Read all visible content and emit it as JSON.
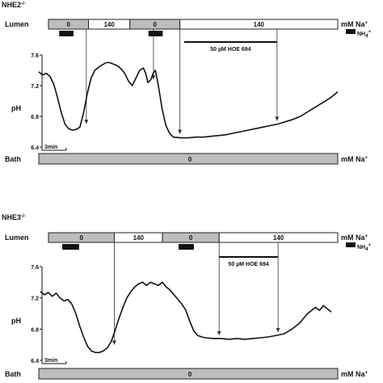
{
  "chart_data": [
    {
      "type": "line",
      "title": "NHE2",
      "title_sup": "-/-",
      "ylabel": "pH",
      "ylim": [
        6.4,
        7.6
      ],
      "yticks": [
        "7.6",
        "7.2",
        "6.8",
        "6.4"
      ],
      "scale_bar": "3min",
      "lumen": {
        "label": "Lumen",
        "unit": "mM Na",
        "unit_sup": "+",
        "segments": [
          {
            "value": "0",
            "shaded": true,
            "start": 0,
            "end": 5.6
          },
          {
            "value": "140",
            "shaded": false,
            "start": 5.6,
            "end": 11.4
          },
          {
            "value": "0",
            "shaded": true,
            "start": 11.4,
            "end": 18.4
          },
          {
            "value": "140",
            "shaded": false,
            "start": 18.4,
            "end": 40.5
          }
        ]
      },
      "nh4": {
        "label": "NH",
        "sub": "4",
        "sup": "+",
        "pulses": [
          [
            1.5,
            3.5
          ],
          [
            14.0,
            16.0
          ]
        ]
      },
      "drug": {
        "label": "50 µM HOE 694",
        "start": 19.0,
        "end": 32.0
      },
      "arrows": [
        5.3,
        14.7,
        18.4,
        32.0
      ],
      "bath": {
        "label": "Bath",
        "unit": "mM Na",
        "unit_sup": "+",
        "value": "0"
      },
      "series": [
        {
          "x": [
            0,
            0.5,
            1,
            1.5,
            2,
            2.5,
            3,
            3.5,
            4,
            4.5,
            5,
            5.5,
            6,
            6.5,
            7,
            7.5,
            8,
            8.5,
            9,
            9.5,
            10,
            10.5,
            11,
            11.5,
            12,
            12.5,
            13,
            13.5,
            14,
            14.3,
            14.6,
            15,
            15.3,
            15.6,
            16,
            16.5,
            17,
            17.5,
            18,
            19,
            20,
            21,
            22,
            23,
            24,
            25,
            26,
            27,
            28,
            29,
            30,
            31,
            32,
            33,
            34,
            35,
            36,
            37,
            38,
            39,
            40
          ],
          "y": [
            7.38,
            7.34,
            7.36,
            7.32,
            7.22,
            7.05,
            6.85,
            6.7,
            6.64,
            6.62,
            6.63,
            6.66,
            6.85,
            7.1,
            7.3,
            7.4,
            7.44,
            7.47,
            7.5,
            7.5,
            7.48,
            7.46,
            7.42,
            7.36,
            7.26,
            7.2,
            7.3,
            7.4,
            7.43,
            7.36,
            7.24,
            7.28,
            7.36,
            7.4,
            7.2,
            6.9,
            6.68,
            6.58,
            6.53,
            6.52,
            6.52,
            6.53,
            6.53,
            6.54,
            6.55,
            6.56,
            6.58,
            6.6,
            6.62,
            6.64,
            6.66,
            6.68,
            6.7,
            6.73,
            6.76,
            6.8,
            6.86,
            6.92,
            6.98,
            7.04,
            7.12
          ]
        }
      ]
    },
    {
      "type": "line",
      "title": "NHE3",
      "title_sup": "-/-",
      "ylabel": "pH",
      "ylim": [
        6.4,
        7.6
      ],
      "yticks": [
        "7.6",
        "7.2",
        "6.8",
        "6.4"
      ],
      "scale_bar": "3min",
      "lumen": {
        "label": "Lumen",
        "unit": "mM Na",
        "unit_sup": "+",
        "segments": [
          {
            "value": "0",
            "shaded": true,
            "start": 0,
            "end": 8.6
          },
          {
            "value": "140",
            "shaded": false,
            "start": 8.6,
            "end": 14.9
          },
          {
            "value": "0",
            "shaded": true,
            "start": 14.9,
            "end": 22.3
          },
          {
            "value": "140",
            "shaded": false,
            "start": 22.3,
            "end": 37.8
          }
        ]
      },
      "nh4": {
        "label": "NH",
        "sub": "4",
        "sup": "+",
        "pulses": [
          [
            1.8,
            4.0
          ],
          [
            17.0,
            19.0
          ]
        ]
      },
      "drug": {
        "label": "50 µM HOE 694",
        "start": 22.3,
        "end": 30.0
      },
      "arrows": [
        8.6,
        22.3,
        30.0
      ],
      "bath": {
        "label": "Bath",
        "unit": "mM Na",
        "unit_sup": "+",
        "value": "0"
      },
      "series": [
        {
          "x": [
            0,
            0.5,
            1,
            1.5,
            2,
            2.5,
            3,
            3.5,
            4,
            4.5,
            5,
            5.5,
            6,
            6.5,
            7,
            7.5,
            8,
            8.5,
            9,
            9.5,
            10,
            10.5,
            11,
            11.5,
            12,
            12.5,
            13,
            13.5,
            14,
            14.5,
            15,
            15.5,
            16,
            16.5,
            17,
            17.5,
            18,
            18.5,
            19,
            19.5,
            20,
            20.5,
            21,
            22,
            23,
            24,
            25,
            26,
            27,
            28,
            29,
            30,
            31,
            32,
            33,
            33.5,
            34,
            34.5,
            35,
            35.5,
            36,
            36.5,
            37
          ],
          "y": [
            7.28,
            7.24,
            7.27,
            7.22,
            7.26,
            7.2,
            7.16,
            7.18,
            7.12,
            7.0,
            6.84,
            6.7,
            6.58,
            6.52,
            6.5,
            6.5,
            6.52,
            6.56,
            6.64,
            6.78,
            6.94,
            7.08,
            7.2,
            7.28,
            7.34,
            7.38,
            7.4,
            7.36,
            7.4,
            7.38,
            7.36,
            7.4,
            7.34,
            7.3,
            7.24,
            7.18,
            7.12,
            7.04,
            6.9,
            6.78,
            6.72,
            6.7,
            6.69,
            6.68,
            6.68,
            6.67,
            6.68,
            6.67,
            6.68,
            6.69,
            6.7,
            6.72,
            6.74,
            6.8,
            6.88,
            6.94,
            7.0,
            7.04,
            7.08,
            7.04,
            7.1,
            7.06,
            7.02
          ]
        }
      ]
    }
  ]
}
